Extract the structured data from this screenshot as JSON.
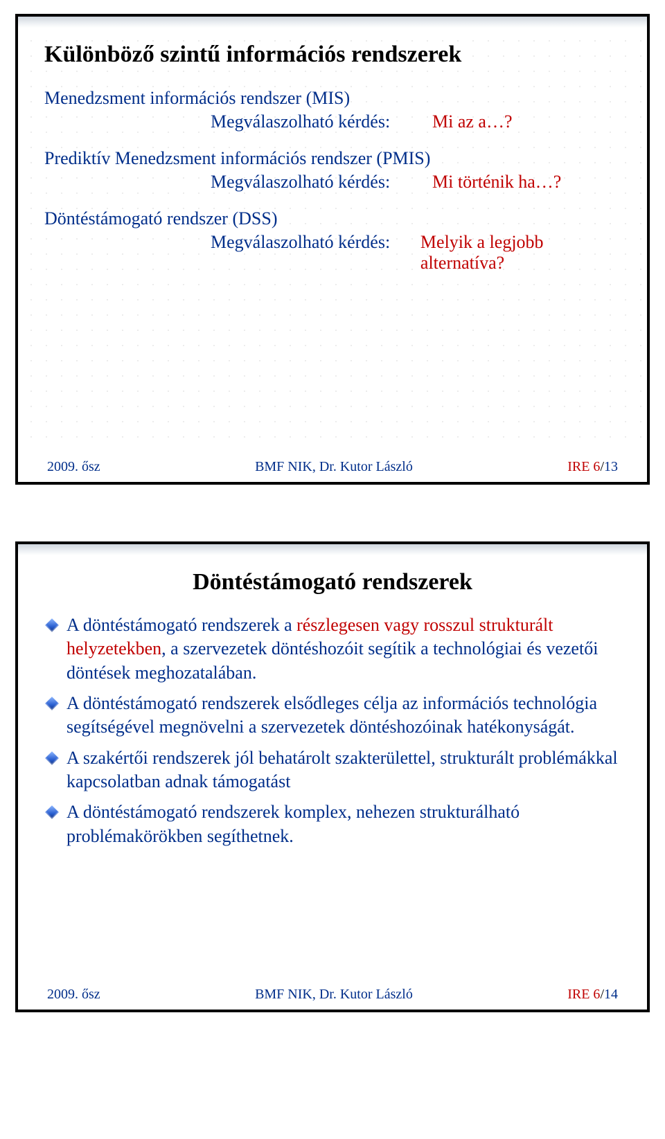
{
  "colors": {
    "text_blue": "#002e8a",
    "text_red": "#c00000",
    "title_black": "#000000",
    "border_black": "#000000",
    "grid_dot": "#d2d2d2",
    "header_grad_top": "#cfd6de",
    "header_grad_bottom": "#ffffff",
    "bullet_grad_light": "#8fb8ff",
    "bullet_grad_mid": "#2a5fd0",
    "bullet_grad_dark": "#0a2a7a"
  },
  "typography": {
    "title_fontsize_pt": 26,
    "body_fontsize_pt": 20,
    "footer_fontsize_pt": 15,
    "font_family": "Times New Roman"
  },
  "slide1": {
    "title": "Különböző szintű információs rendszerek",
    "items": [
      {
        "name": "Menedzsment információs rendszer (MIS)",
        "q_label": "Megválaszolható kérdés:",
        "answer": "Mi az a…?"
      },
      {
        "name": "Prediktív Menedzsment információs rendszer (PMIS)",
        "q_label": "Megválaszolható kérdés:",
        "answer": "Mi történik ha…?"
      },
      {
        "name": "Döntéstámogató rendszer (DSS)",
        "q_label": "Megválaszolható kérdés:",
        "answer": "Melyik a legjobb alternatíva?"
      }
    ],
    "footer": {
      "left": "2009. ősz",
      "mid": "BMF NIK,  Dr. Kutor László",
      "right_prefix": "IRE 6",
      "right_page": "13"
    }
  },
  "slide2": {
    "title": "Döntéstámogató rendszerek",
    "bullets": [
      {
        "pre": "A döntéstámogató rendszerek a ",
        "red": "részlegesen vagy rosszul strukturált helyzetekben",
        "post": ", a szervezetek döntéshozóit segítik a technológiai és vezetői döntések meghozatalában."
      },
      {
        "pre": "A döntéstámogató rendszerek elsődleges célja az információs technológia segítségével megnövelni a szervezetek döntéshozóinak hatékonyságát.",
        "red": "",
        "post": ""
      },
      {
        "pre": "A szakértői rendszerek jól behatárolt szakterülettel, strukturált problémákkal kapcsolatban adnak támogatást",
        "red": "",
        "post": ""
      },
      {
        "pre": "A döntéstámogató rendszerek komplex, nehezen strukturálható problémakörökben segíthetnek.",
        "red": "",
        "post": ""
      }
    ],
    "footer": {
      "left": "2009. ősz",
      "mid": "BMF NIK,  Dr. Kutor László",
      "right_prefix": "IRE 6",
      "right_page": "14"
    }
  }
}
